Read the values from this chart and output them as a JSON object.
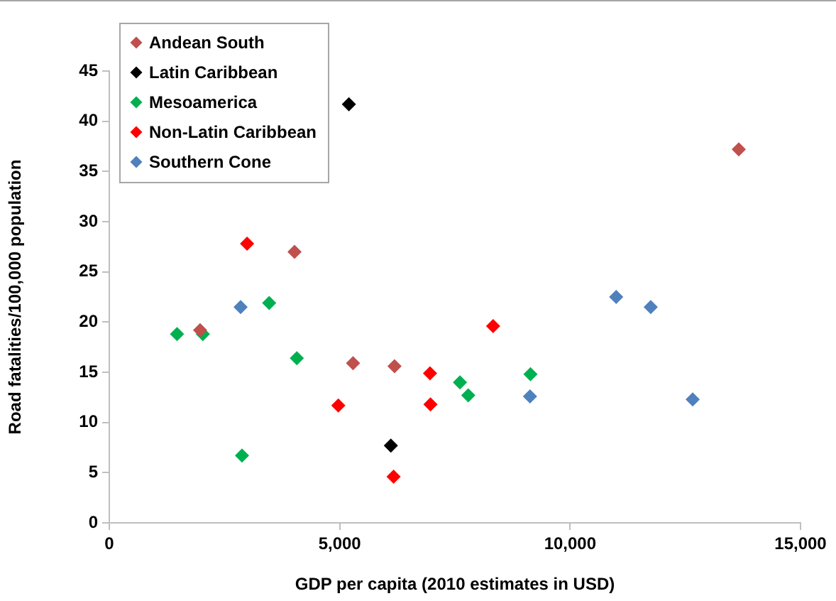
{
  "chart_data": {
    "type": "scatter",
    "xlabel": "GDP per capita (2010 estimates in USD)",
    "ylabel": "Road fatalities/100,000 population",
    "xlim": [
      0,
      15000
    ],
    "xticks": [
      {
        "value": 0,
        "label": "0"
      },
      {
        "value": 5000,
        "label": "5,000"
      },
      {
        "value": 10000,
        "label": "10,000"
      },
      {
        "value": 15000,
        "label": "15,000"
      }
    ],
    "ylim": [
      0,
      45
    ],
    "yticks": [
      0,
      5,
      10,
      15,
      20,
      25,
      30,
      35,
      40,
      45
    ],
    "grid": false,
    "legend": "top left",
    "marker": "diamond",
    "series": [
      {
        "name": "Andean South",
        "color": "#c0504d",
        "x": [
          1970,
          4020,
          5290,
          6190,
          13660
        ],
        "values": [
          19.2,
          27.0,
          15.9,
          15.6,
          37.2
        ]
      },
      {
        "name": "Latin Caribbean",
        "color": "#000000",
        "x": [
          5200,
          6110
        ],
        "values": [
          41.7,
          7.7
        ]
      },
      {
        "name": "Mesoamerica",
        "color": "#00b050",
        "x": [
          1470,
          2030,
          2880,
          3470,
          4070,
          7610,
          7790,
          9140
        ],
        "values": [
          18.8,
          18.8,
          6.7,
          21.9,
          16.4,
          14.0,
          12.7,
          14.8
        ]
      },
      {
        "name": "Non-Latin Caribbean",
        "color": "#ff0000",
        "x": [
          2990,
          4970,
          6170,
          6960,
          6970,
          8330
        ],
        "values": [
          27.8,
          11.7,
          4.6,
          14.9,
          11.8,
          19.6
        ]
      },
      {
        "name": "Southern Cone",
        "color": "#4f81bd",
        "x": [
          2850,
          9130,
          11000,
          11750,
          12660
        ],
        "values": [
          21.5,
          12.6,
          22.5,
          21.5,
          12.3
        ]
      }
    ]
  }
}
